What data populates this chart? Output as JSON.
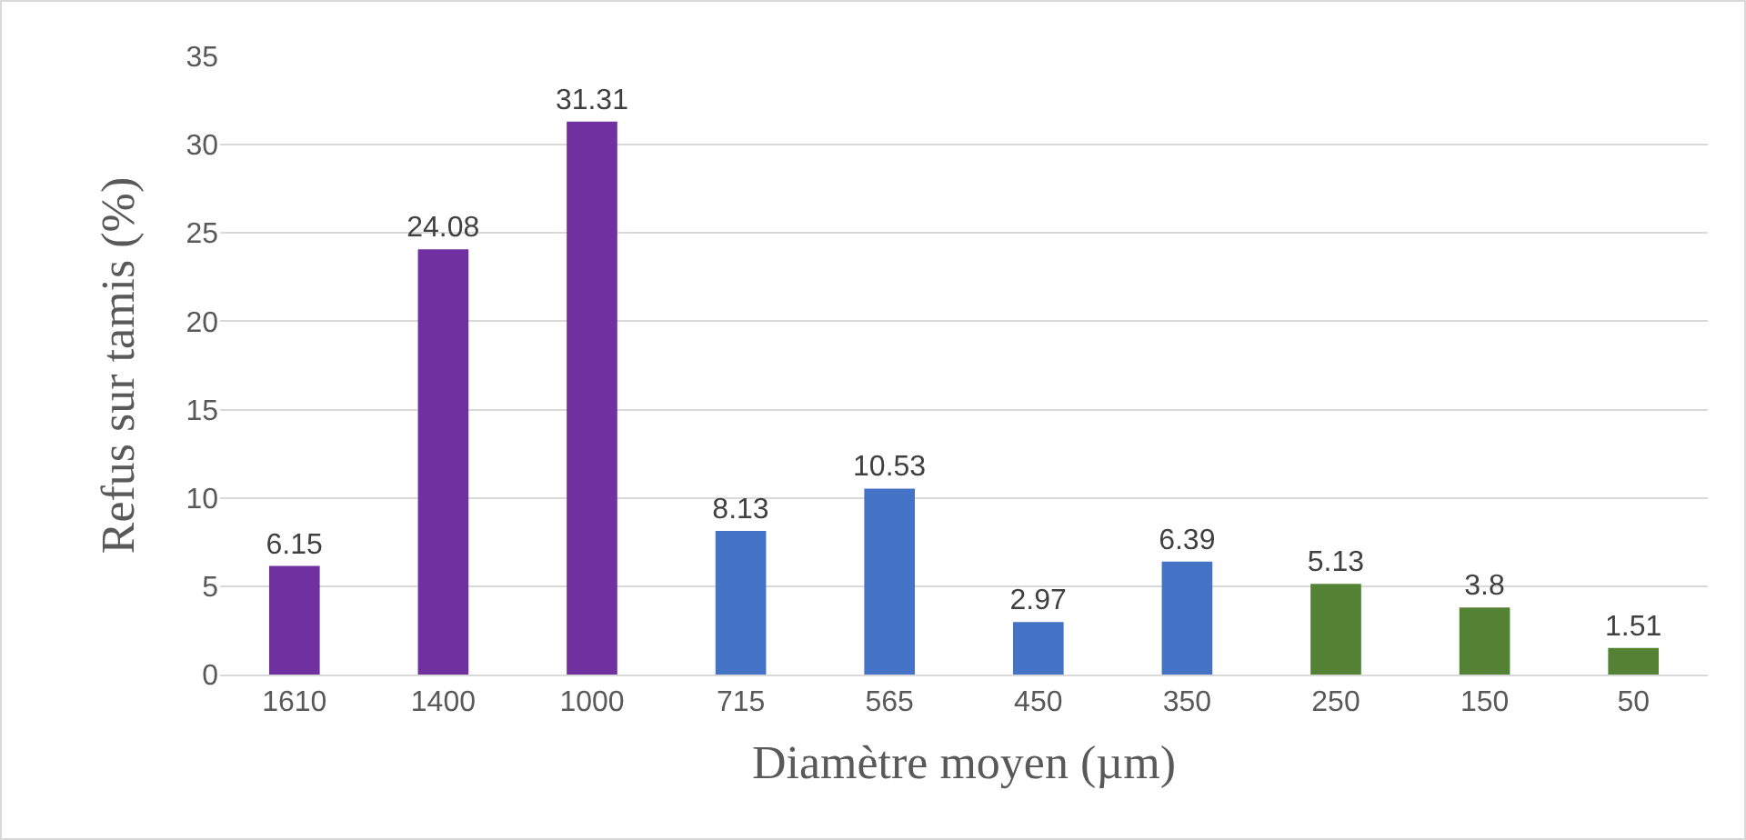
{
  "chart_data": {
    "type": "bar",
    "xlabel": "Diamètre moyen (µm)",
    "ylabel": "Refus sur tamis (%)",
    "categories": [
      "1610",
      "1400",
      "1000",
      "715",
      "565",
      "450",
      "350",
      "250",
      "150",
      "50"
    ],
    "values": [
      6.15,
      24.08,
      31.31,
      8.13,
      10.53,
      2.97,
      6.39,
      5.13,
      3.8,
      1.51
    ],
    "colors": [
      "#7030a0",
      "#7030a0",
      "#7030a0",
      "#4472c4",
      "#4472c4",
      "#4472c4",
      "#4472c4",
      "#548235",
      "#548235",
      "#548235"
    ],
    "ylim": [
      0,
      35
    ],
    "yticks": [
      0,
      5,
      10,
      15,
      20,
      25,
      30,
      35
    ],
    "grid": "y",
    "data_labels": true
  }
}
